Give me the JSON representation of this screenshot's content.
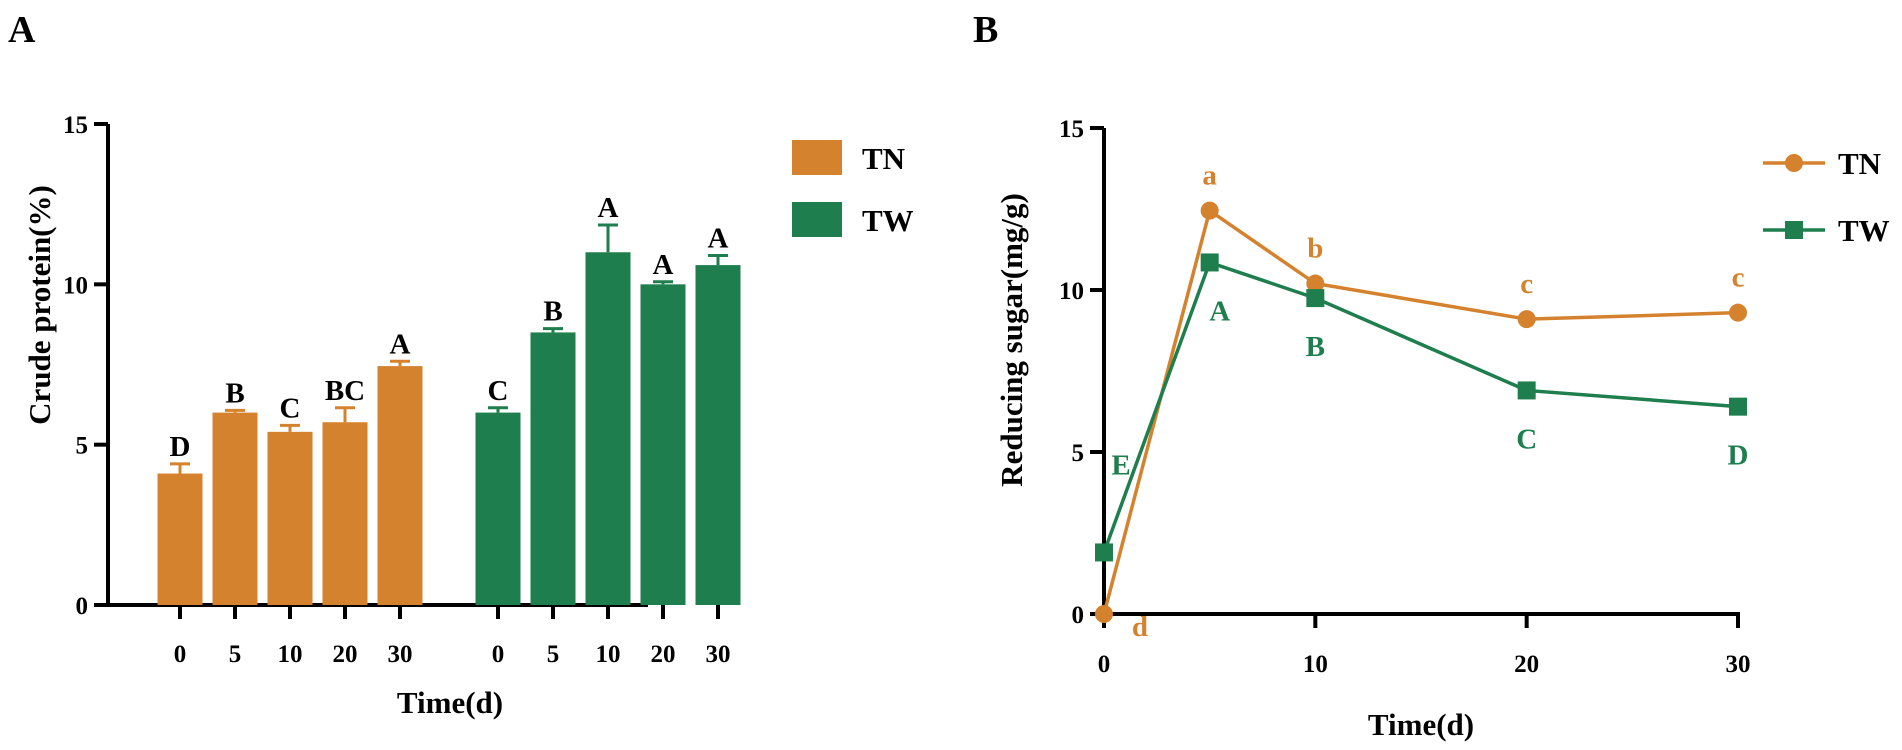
{
  "colors": {
    "TN": "#D4822E",
    "TW": "#1E7E4E",
    "axis": "#000000"
  },
  "chart_data": [
    {
      "panel": "A",
      "type": "bar",
      "ylabel": "Crude protein(%)",
      "xlabel": "Time(d)",
      "ylim": [
        0,
        15
      ],
      "yticks": [
        0,
        5,
        10,
        15
      ],
      "series": [
        {
          "name": "TN",
          "categories": [
            "0",
            "5",
            "10",
            "20",
            "30"
          ],
          "values": [
            4.1,
            6.0,
            5.4,
            5.7,
            7.45
          ],
          "errors": [
            0.3,
            0.07,
            0.2,
            0.45,
            0.15
          ],
          "letters": [
            "D",
            "B",
            "C",
            "BC",
            "A"
          ]
        },
        {
          "name": "TW",
          "categories": [
            "0",
            "5",
            "10",
            "20",
            "30"
          ],
          "values": [
            6.0,
            8.5,
            11.0,
            10.0,
            10.6
          ],
          "errors": [
            0.15,
            0.12,
            0.85,
            0.08,
            0.3
          ],
          "letters": [
            "C",
            "B",
            "A",
            "A",
            "A"
          ]
        }
      ],
      "legend": [
        "TN",
        "TW"
      ]
    },
    {
      "panel": "B",
      "type": "line",
      "ylabel": "Reducing sugar(mg/g)",
      "xlabel": "Time(d)",
      "xlim": [
        0,
        30
      ],
      "ylim": [
        0,
        15
      ],
      "xticks": [
        0,
        10,
        20,
        30
      ],
      "yticks": [
        0,
        5,
        10,
        15
      ],
      "series": [
        {
          "name": "TN",
          "marker": "circle",
          "x": [
            0,
            5,
            10,
            20,
            30
          ],
          "y": [
            0.0,
            12.45,
            10.2,
            9.1,
            9.3
          ],
          "letters": [
            "d",
            "a",
            "b",
            "c",
            "c"
          ]
        },
        {
          "name": "TW",
          "marker": "square",
          "x": [
            0,
            5,
            10,
            20,
            30
          ],
          "y": [
            1.9,
            10.85,
            9.75,
            6.9,
            6.4
          ],
          "letters": [
            "E",
            "A",
            "B",
            "C",
            "D"
          ]
        }
      ],
      "legend": [
        "TN",
        "TW"
      ]
    }
  ]
}
